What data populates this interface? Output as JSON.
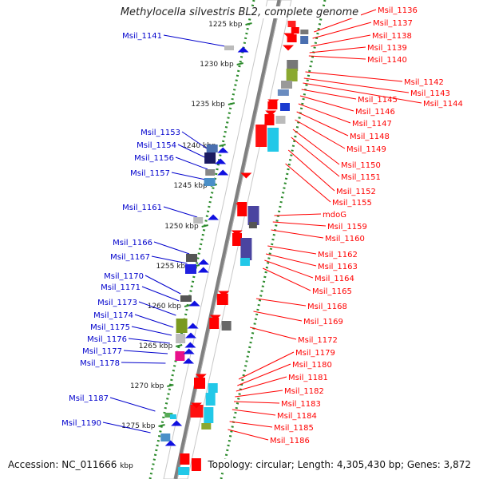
{
  "title": "Methylocella silvestris BL2, complete genome",
  "accession_label": "Accession: NC_011666",
  "accession_suffix": "kbp",
  "topology_label": "Topology: circular; Length: 4,305,430 bp; Genes: 3,872",
  "colors": {
    "forward_label": "#0000cc",
    "reverse_label": "#ff0000",
    "tick": "#2b8a2b",
    "backbone": "#808080"
  },
  "ticks": [
    {
      "kbp": 1225,
      "label": "1225 kbp"
    },
    {
      "kbp": 1230,
      "label": "1230 kbp"
    },
    {
      "kbp": 1235,
      "label": "1235 kbp"
    },
    {
      "kbp": 1240,
      "label": "1240 kbp"
    },
    {
      "kbp": 1245,
      "label": "1245 kbp"
    },
    {
      "kbp": 1250,
      "label": "1250 kbp"
    },
    {
      "kbp": 1255,
      "label": "1255 kbp"
    },
    {
      "kbp": 1260,
      "label": "1260 kbp"
    },
    {
      "kbp": 1265,
      "label": "1265 kbp"
    },
    {
      "kbp": 1270,
      "label": "1270 kbp"
    },
    {
      "kbp": 1275,
      "label": "1275 kbp"
    }
  ],
  "forward_genes": [
    {
      "name": "Msil_1141"
    },
    {
      "name": "Msil_1153"
    },
    {
      "name": "Msil_1154"
    },
    {
      "name": "Msil_1156"
    },
    {
      "name": "Msil_1157"
    },
    {
      "name": "Msil_1161"
    },
    {
      "name": "Msil_1166"
    },
    {
      "name": "Msil_1167"
    },
    {
      "name": "Msil_1170"
    },
    {
      "name": "Msil_1171"
    },
    {
      "name": "Msil_1173"
    },
    {
      "name": "Msil_1174"
    },
    {
      "name": "Msil_1175"
    },
    {
      "name": "Msil_1176"
    },
    {
      "name": "Msil_1177"
    },
    {
      "name": "Msil_1178"
    },
    {
      "name": "Msil_1187"
    },
    {
      "name": "Msil_1190"
    }
  ],
  "reverse_genes": [
    {
      "name": "Msil_1136"
    },
    {
      "name": "Msil_1137"
    },
    {
      "name": "Msil_1138"
    },
    {
      "name": "Msil_1139"
    },
    {
      "name": "Msil_1140"
    },
    {
      "name": "Msil_1142"
    },
    {
      "name": "Msil_1143"
    },
    {
      "name": "Msil_1144"
    },
    {
      "name": "Msil_1145"
    },
    {
      "name": "Msil_1146"
    },
    {
      "name": "Msil_1147"
    },
    {
      "name": "Msil_1148"
    },
    {
      "name": "Msil_1149"
    },
    {
      "name": "Msil_1150"
    },
    {
      "name": "Msil_1151"
    },
    {
      "name": "Msil_1152"
    },
    {
      "name": "Msil_1155"
    },
    {
      "name": "mdoG"
    },
    {
      "name": "Msil_1159"
    },
    {
      "name": "Msil_1160"
    },
    {
      "name": "Msil_1162"
    },
    {
      "name": "Msil_1163"
    },
    {
      "name": "Msil_1164"
    },
    {
      "name": "Msil_1165"
    },
    {
      "name": "Msil_1168"
    },
    {
      "name": "Msil_1169"
    },
    {
      "name": "Msil_1172"
    },
    {
      "name": "Msil_1179"
    },
    {
      "name": "Msil_1180"
    },
    {
      "name": "Msil_1181"
    },
    {
      "name": "Msil_1182"
    },
    {
      "name": "Msil_1183"
    },
    {
      "name": "Msil_1184"
    },
    {
      "name": "Msil_1185"
    },
    {
      "name": "Msil_1186"
    }
  ]
}
